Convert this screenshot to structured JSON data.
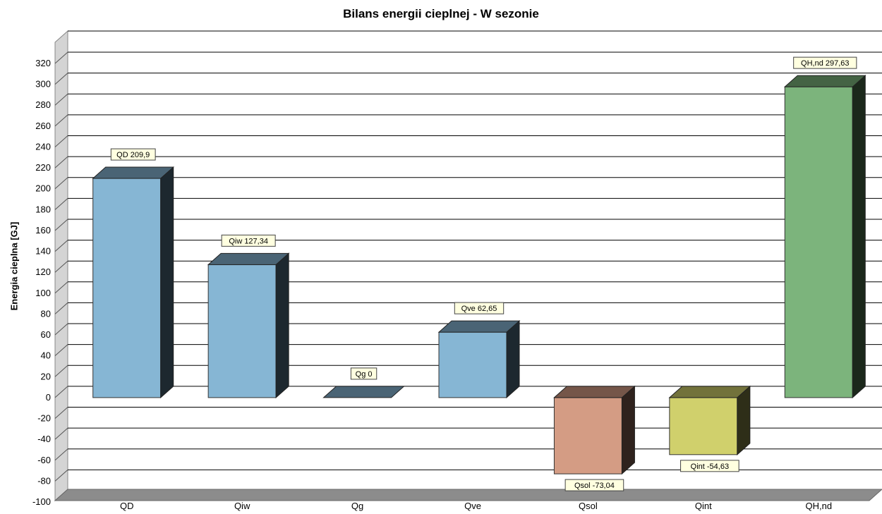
{
  "chart_data": {
    "type": "bar",
    "title": "Bilans energii cieplnej - W sezonie",
    "ylabel": "Energia cieplna [GJ]",
    "xlabel": "",
    "ylim": [
      -100,
      320
    ],
    "ytick_step": 20,
    "grid": true,
    "categories": [
      "QD",
      "Qiw",
      "Qg",
      "Qve",
      "Qsol",
      "Qint",
      "QH,nd"
    ],
    "values": [
      209.9,
      127.34,
      0,
      62.65,
      -73.04,
      -54.63,
      297.63
    ],
    "data_labels": [
      "QD 209,9",
      "Qiw 127,34",
      "Qg 0",
      "Qve 62,65",
      "Qsol -73,04",
      "Qint -54,63",
      "QH,nd 297,63"
    ],
    "colors": [
      "#86b6d4",
      "#86b6d4",
      "#86b6d4",
      "#86b6d4",
      "#d49c84",
      "#d0d06c",
      "#7cb47c"
    ]
  }
}
